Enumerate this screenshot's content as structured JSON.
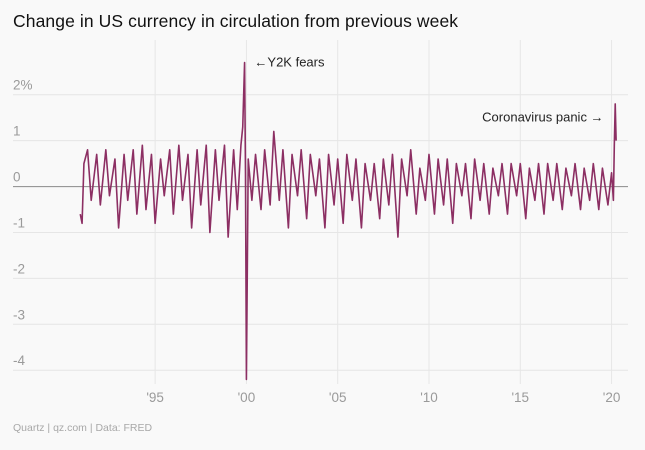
{
  "header": {
    "title": "Change in US currency in circulation from previous week"
  },
  "footer": {
    "source": "Quartz | qz.com | Data: FRED"
  },
  "colors": {
    "series": "#8c2f63",
    "grid": "#e6e6e6",
    "zero": "#8a8a8a",
    "tick": "#9a9a9a",
    "background": "#f9f9f9"
  },
  "chart_data": {
    "type": "line",
    "title": "Change in US currency in circulation from previous week",
    "xlabel": "",
    "ylabel": "",
    "xlim": [
      1989.9,
      2020.9
    ],
    "ylim": [
      -4.3,
      2.8
    ],
    "grid": true,
    "yticks": [
      {
        "value": 2,
        "label": "2%"
      },
      {
        "value": 1,
        "label": "1"
      },
      {
        "value": 0,
        "label": "0"
      },
      {
        "value": -1,
        "label": "-1"
      },
      {
        "value": -2,
        "label": "-2"
      },
      {
        "value": -3,
        "label": "-3"
      },
      {
        "value": -4,
        "label": "-4"
      }
    ],
    "xticks": [
      {
        "value": 1995,
        "label": "'95"
      },
      {
        "value": 2000,
        "label": "'00"
      },
      {
        "value": 2005,
        "label": "'05"
      },
      {
        "value": 2010,
        "label": "'10"
      },
      {
        "value": 2015,
        "label": "'15"
      },
      {
        "value": 2020,
        "label": "'20"
      }
    ],
    "annotations": [
      {
        "text": "←Y2K fears",
        "x": 2000.0,
        "y": 2.7,
        "anchor": "start"
      },
      {
        "text": "Coronavirus panic →",
        "x": 2020.0,
        "y": 1.5,
        "anchor": "end"
      }
    ],
    "series": [
      {
        "values": [
          [
            1990.9,
            -0.6
          ],
          [
            1991.0,
            -0.8
          ],
          [
            1991.1,
            0.5
          ],
          [
            1991.3,
            0.8
          ],
          [
            1991.5,
            -0.3
          ],
          [
            1991.8,
            0.7
          ],
          [
            1992.0,
            -0.4
          ],
          [
            1992.3,
            0.8
          ],
          [
            1992.5,
            -0.2
          ],
          [
            1992.8,
            0.6
          ],
          [
            1993.0,
            -0.9
          ],
          [
            1993.3,
            0.7
          ],
          [
            1993.5,
            -0.3
          ],
          [
            1993.8,
            0.8
          ],
          [
            1994.0,
            -0.6
          ],
          [
            1994.3,
            0.9
          ],
          [
            1994.5,
            -0.5
          ],
          [
            1994.8,
            0.7
          ],
          [
            1995.0,
            -0.8
          ],
          [
            1995.3,
            0.6
          ],
          [
            1995.5,
            -0.2
          ],
          [
            1995.8,
            0.8
          ],
          [
            1996.0,
            -0.6
          ],
          [
            1996.3,
            0.9
          ],
          [
            1996.5,
            -0.3
          ],
          [
            1996.8,
            0.7
          ],
          [
            1997.0,
            -0.9
          ],
          [
            1997.3,
            0.8
          ],
          [
            1997.5,
            -0.4
          ],
          [
            1997.8,
            0.9
          ],
          [
            1998.0,
            -1.0
          ],
          [
            1998.3,
            0.8
          ],
          [
            1998.5,
            -0.3
          ],
          [
            1998.8,
            0.9
          ],
          [
            1999.0,
            -1.1
          ],
          [
            1999.3,
            0.8
          ],
          [
            1999.5,
            -0.5
          ],
          [
            1999.7,
            0.9
          ],
          [
            1999.8,
            1.3
          ],
          [
            1999.9,
            2.7
          ],
          [
            1999.95,
            0.3
          ],
          [
            2000.0,
            -4.2
          ],
          [
            2000.1,
            0.6
          ],
          [
            2000.3,
            -0.3
          ],
          [
            2000.5,
            0.7
          ],
          [
            2000.8,
            -0.5
          ],
          [
            2001.0,
            0.8
          ],
          [
            2001.3,
            -0.4
          ],
          [
            2001.5,
            1.2
          ],
          [
            2001.8,
            -0.3
          ],
          [
            2002.0,
            0.8
          ],
          [
            2002.3,
            -0.9
          ],
          [
            2002.5,
            0.7
          ],
          [
            2002.8,
            -0.2
          ],
          [
            2003.0,
            0.8
          ],
          [
            2003.3,
            -0.7
          ],
          [
            2003.5,
            0.7
          ],
          [
            2003.8,
            -0.2
          ],
          [
            2004.0,
            0.6
          ],
          [
            2004.3,
            -0.9
          ],
          [
            2004.5,
            0.7
          ],
          [
            2004.8,
            -0.4
          ],
          [
            2005.0,
            0.6
          ],
          [
            2005.3,
            -0.8
          ],
          [
            2005.5,
            0.7
          ],
          [
            2005.8,
            -0.3
          ],
          [
            2006.0,
            0.6
          ],
          [
            2006.3,
            -0.9
          ],
          [
            2006.5,
            0.5
          ],
          [
            2006.8,
            -0.3
          ],
          [
            2007.0,
            0.5
          ],
          [
            2007.3,
            -0.7
          ],
          [
            2007.5,
            0.6
          ],
          [
            2007.8,
            -0.4
          ],
          [
            2008.0,
            0.7
          ],
          [
            2008.3,
            -1.1
          ],
          [
            2008.5,
            0.6
          ],
          [
            2008.8,
            -0.2
          ],
          [
            2009.0,
            0.8
          ],
          [
            2009.3,
            -0.6
          ],
          [
            2009.5,
            0.4
          ],
          [
            2009.8,
            -0.3
          ],
          [
            2010.0,
            0.7
          ],
          [
            2010.3,
            -0.6
          ],
          [
            2010.5,
            0.6
          ],
          [
            2010.8,
            -0.4
          ],
          [
            2011.0,
            0.6
          ],
          [
            2011.3,
            -0.8
          ],
          [
            2011.5,
            0.5
          ],
          [
            2011.8,
            -0.2
          ],
          [
            2012.0,
            0.5
          ],
          [
            2012.3,
            -0.7
          ],
          [
            2012.5,
            0.6
          ],
          [
            2012.8,
            -0.3
          ],
          [
            2013.0,
            0.5
          ],
          [
            2013.3,
            -0.6
          ],
          [
            2013.5,
            0.4
          ],
          [
            2013.8,
            -0.2
          ],
          [
            2014.0,
            0.5
          ],
          [
            2014.3,
            -0.6
          ],
          [
            2014.5,
            0.5
          ],
          [
            2014.8,
            -0.2
          ],
          [
            2015.0,
            0.5
          ],
          [
            2015.3,
            -0.7
          ],
          [
            2015.5,
            0.4
          ],
          [
            2015.8,
            -0.3
          ],
          [
            2016.0,
            0.5
          ],
          [
            2016.3,
            -0.6
          ],
          [
            2016.5,
            0.5
          ],
          [
            2016.8,
            -0.3
          ],
          [
            2017.0,
            0.5
          ],
          [
            2017.3,
            -0.5
          ],
          [
            2017.5,
            0.4
          ],
          [
            2017.8,
            -0.2
          ],
          [
            2018.0,
            0.5
          ],
          [
            2018.3,
            -0.5
          ],
          [
            2018.5,
            0.4
          ],
          [
            2018.8,
            -0.3
          ],
          [
            2019.0,
            0.5
          ],
          [
            2019.3,
            -0.5
          ],
          [
            2019.5,
            0.4
          ],
          [
            2019.8,
            -0.4
          ],
          [
            2020.0,
            0.3
          ],
          [
            2020.1,
            -0.3
          ],
          [
            2020.15,
            0.9
          ],
          [
            2020.2,
            1.8
          ],
          [
            2020.25,
            1.0
          ]
        ]
      }
    ]
  }
}
